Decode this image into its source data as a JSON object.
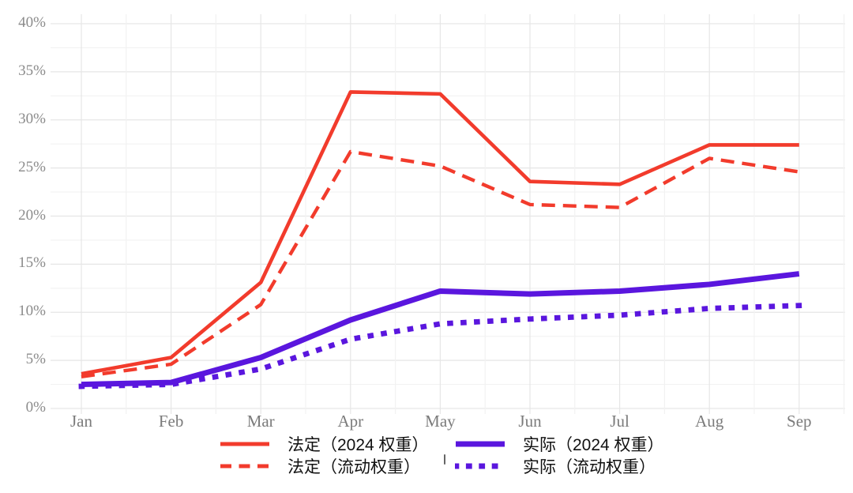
{
  "chart_data": {
    "type": "line",
    "title": "",
    "xlabel": "",
    "ylabel": "",
    "categories": [
      "Jan",
      "Feb",
      "Mar",
      "Apr",
      "May",
      "Jun",
      "Jul",
      "Aug",
      "Sep"
    ],
    "y_ticks": [
      "0%",
      "5%",
      "10%",
      "15%",
      "20%",
      "25%",
      "30%",
      "35%",
      "40%"
    ],
    "ylim": [
      0,
      40
    ],
    "y_major_step": 5,
    "y_minor_step": 2.5,
    "x_minor_step": 0.5,
    "grid": "on",
    "legend_position": "bottom-center",
    "colors": {
      "red": "#F23B2C",
      "purple": "#5A16DE",
      "grid_major": "#e6e6e6",
      "grid_minor": "#f2f2f2",
      "axis_text": "#8b8b8b"
    },
    "series": [
      {
        "name": "法定（2024 权重）",
        "color": "#F23B2C",
        "style": "solid",
        "values": [
          3.6,
          5.3,
          13.1,
          32.9,
          32.7,
          23.6,
          23.3,
          27.4,
          27.4
        ]
      },
      {
        "name": "法定（流动权重）",
        "color": "#F23B2C",
        "style": "dashed",
        "values": [
          3.3,
          4.6,
          10.8,
          26.7,
          25.2,
          21.2,
          20.9,
          26.0,
          24.6
        ]
      },
      {
        "name": "实际（2024 权重）",
        "color": "#5A16DE",
        "style": "solid",
        "values": [
          2.5,
          2.7,
          5.3,
          9.2,
          12.2,
          11.9,
          12.2,
          12.9,
          14.0
        ]
      },
      {
        "name": "实际（流动权重）",
        "color": "#5A16DE",
        "style": "dotted",
        "values": [
          2.3,
          2.5,
          4.1,
          7.2,
          8.8,
          9.3,
          9.7,
          10.4,
          10.7
        ]
      }
    ]
  }
}
